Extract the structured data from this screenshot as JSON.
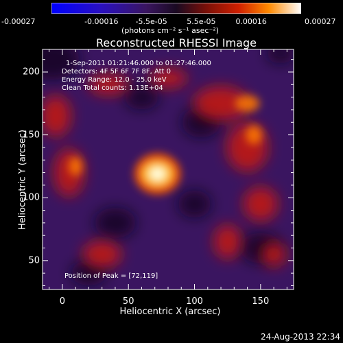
{
  "chart_data": {
    "type": "heatmap",
    "title": "Reconstructed RHESSI Image",
    "xlabel": "Heliocentric X (arcsec)",
    "ylabel": "Heliocentric Y (arcsec)",
    "xlim": [
      -15,
      175
    ],
    "ylim": [
      27,
      218
    ],
    "x_ticks": [
      "0",
      "50",
      "100",
      "150"
    ],
    "y_ticks": [
      "50",
      "100",
      "150",
      "200"
    ],
    "colorbar": {
      "ticks": [
        "-0.00027",
        "-0.00016",
        "-5.5e-05",
        "5.5e-05",
        "0.00016",
        "0.00027"
      ],
      "range": [
        -0.00027,
        0.00027
      ],
      "units": "(photons cm⁻² s⁻¹ asec⁻²)"
    },
    "annotations": {
      "time": "1-Sep-2011 01:21:46.000 to 01:27:46.000",
      "detectors": "Detectors: 4F 5F 6F 7F 8F, Att 0",
      "energy": "Energy Range: 12.0 - 25.0 keV",
      "clean": "Clean     Total counts: 1.13E+04",
      "peak": "Position of Peak = [72,119]"
    },
    "peak": [
      72,
      119
    ]
  },
  "footer": {
    "date": "24-Aug-2013 22:34"
  }
}
